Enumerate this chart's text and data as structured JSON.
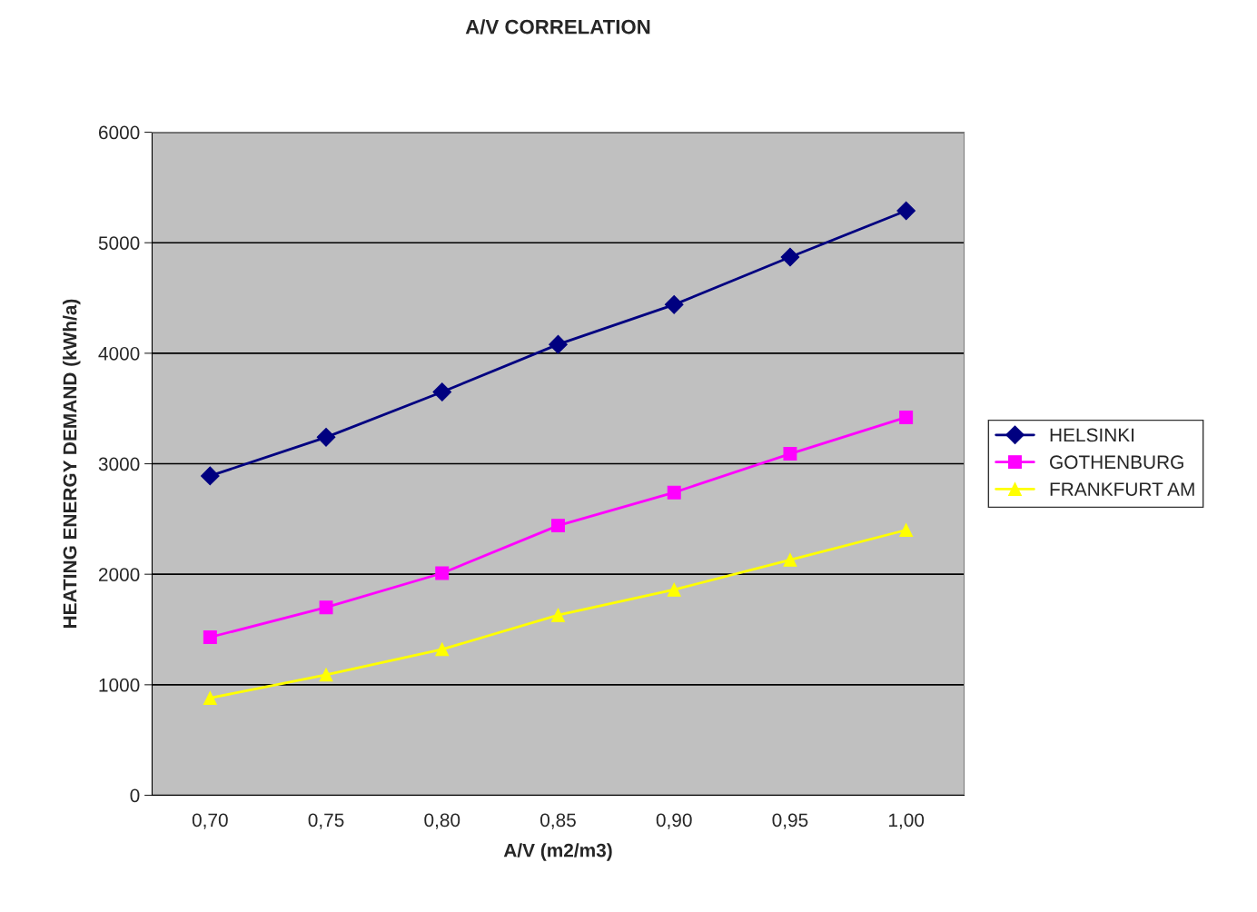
{
  "chart_data": {
    "type": "line",
    "title": "A/V CORRELATION",
    "xlabel": "A/V (m2/m3)",
    "ylabel": "HEATING ENERGY DEMAND (kWh/a)",
    "categories": [
      "0,70",
      "0,75",
      "0,80",
      "0,85",
      "0,90",
      "0,95",
      "1,00"
    ],
    "series": [
      {
        "name": "HELSINKI",
        "color": "#000080",
        "marker": "diamond",
        "values": [
          2890,
          3240,
          3650,
          4080,
          4440,
          4870,
          5290
        ]
      },
      {
        "name": "GOTHENBURG",
        "color": "#ff00ff",
        "marker": "square",
        "values": [
          1430,
          1700,
          2010,
          2440,
          2740,
          3090,
          3420
        ]
      },
      {
        "name": "FRANKFURT AM",
        "color": "#ffff00",
        "marker": "triangle",
        "values": [
          880,
          1090,
          1320,
          1630,
          1860,
          2130,
          2400
        ]
      }
    ],
    "ylim": [
      0,
      6000
    ],
    "yticks": [
      0,
      1000,
      2000,
      3000,
      4000,
      5000,
      6000
    ],
    "grid": "y",
    "legend": "right"
  }
}
